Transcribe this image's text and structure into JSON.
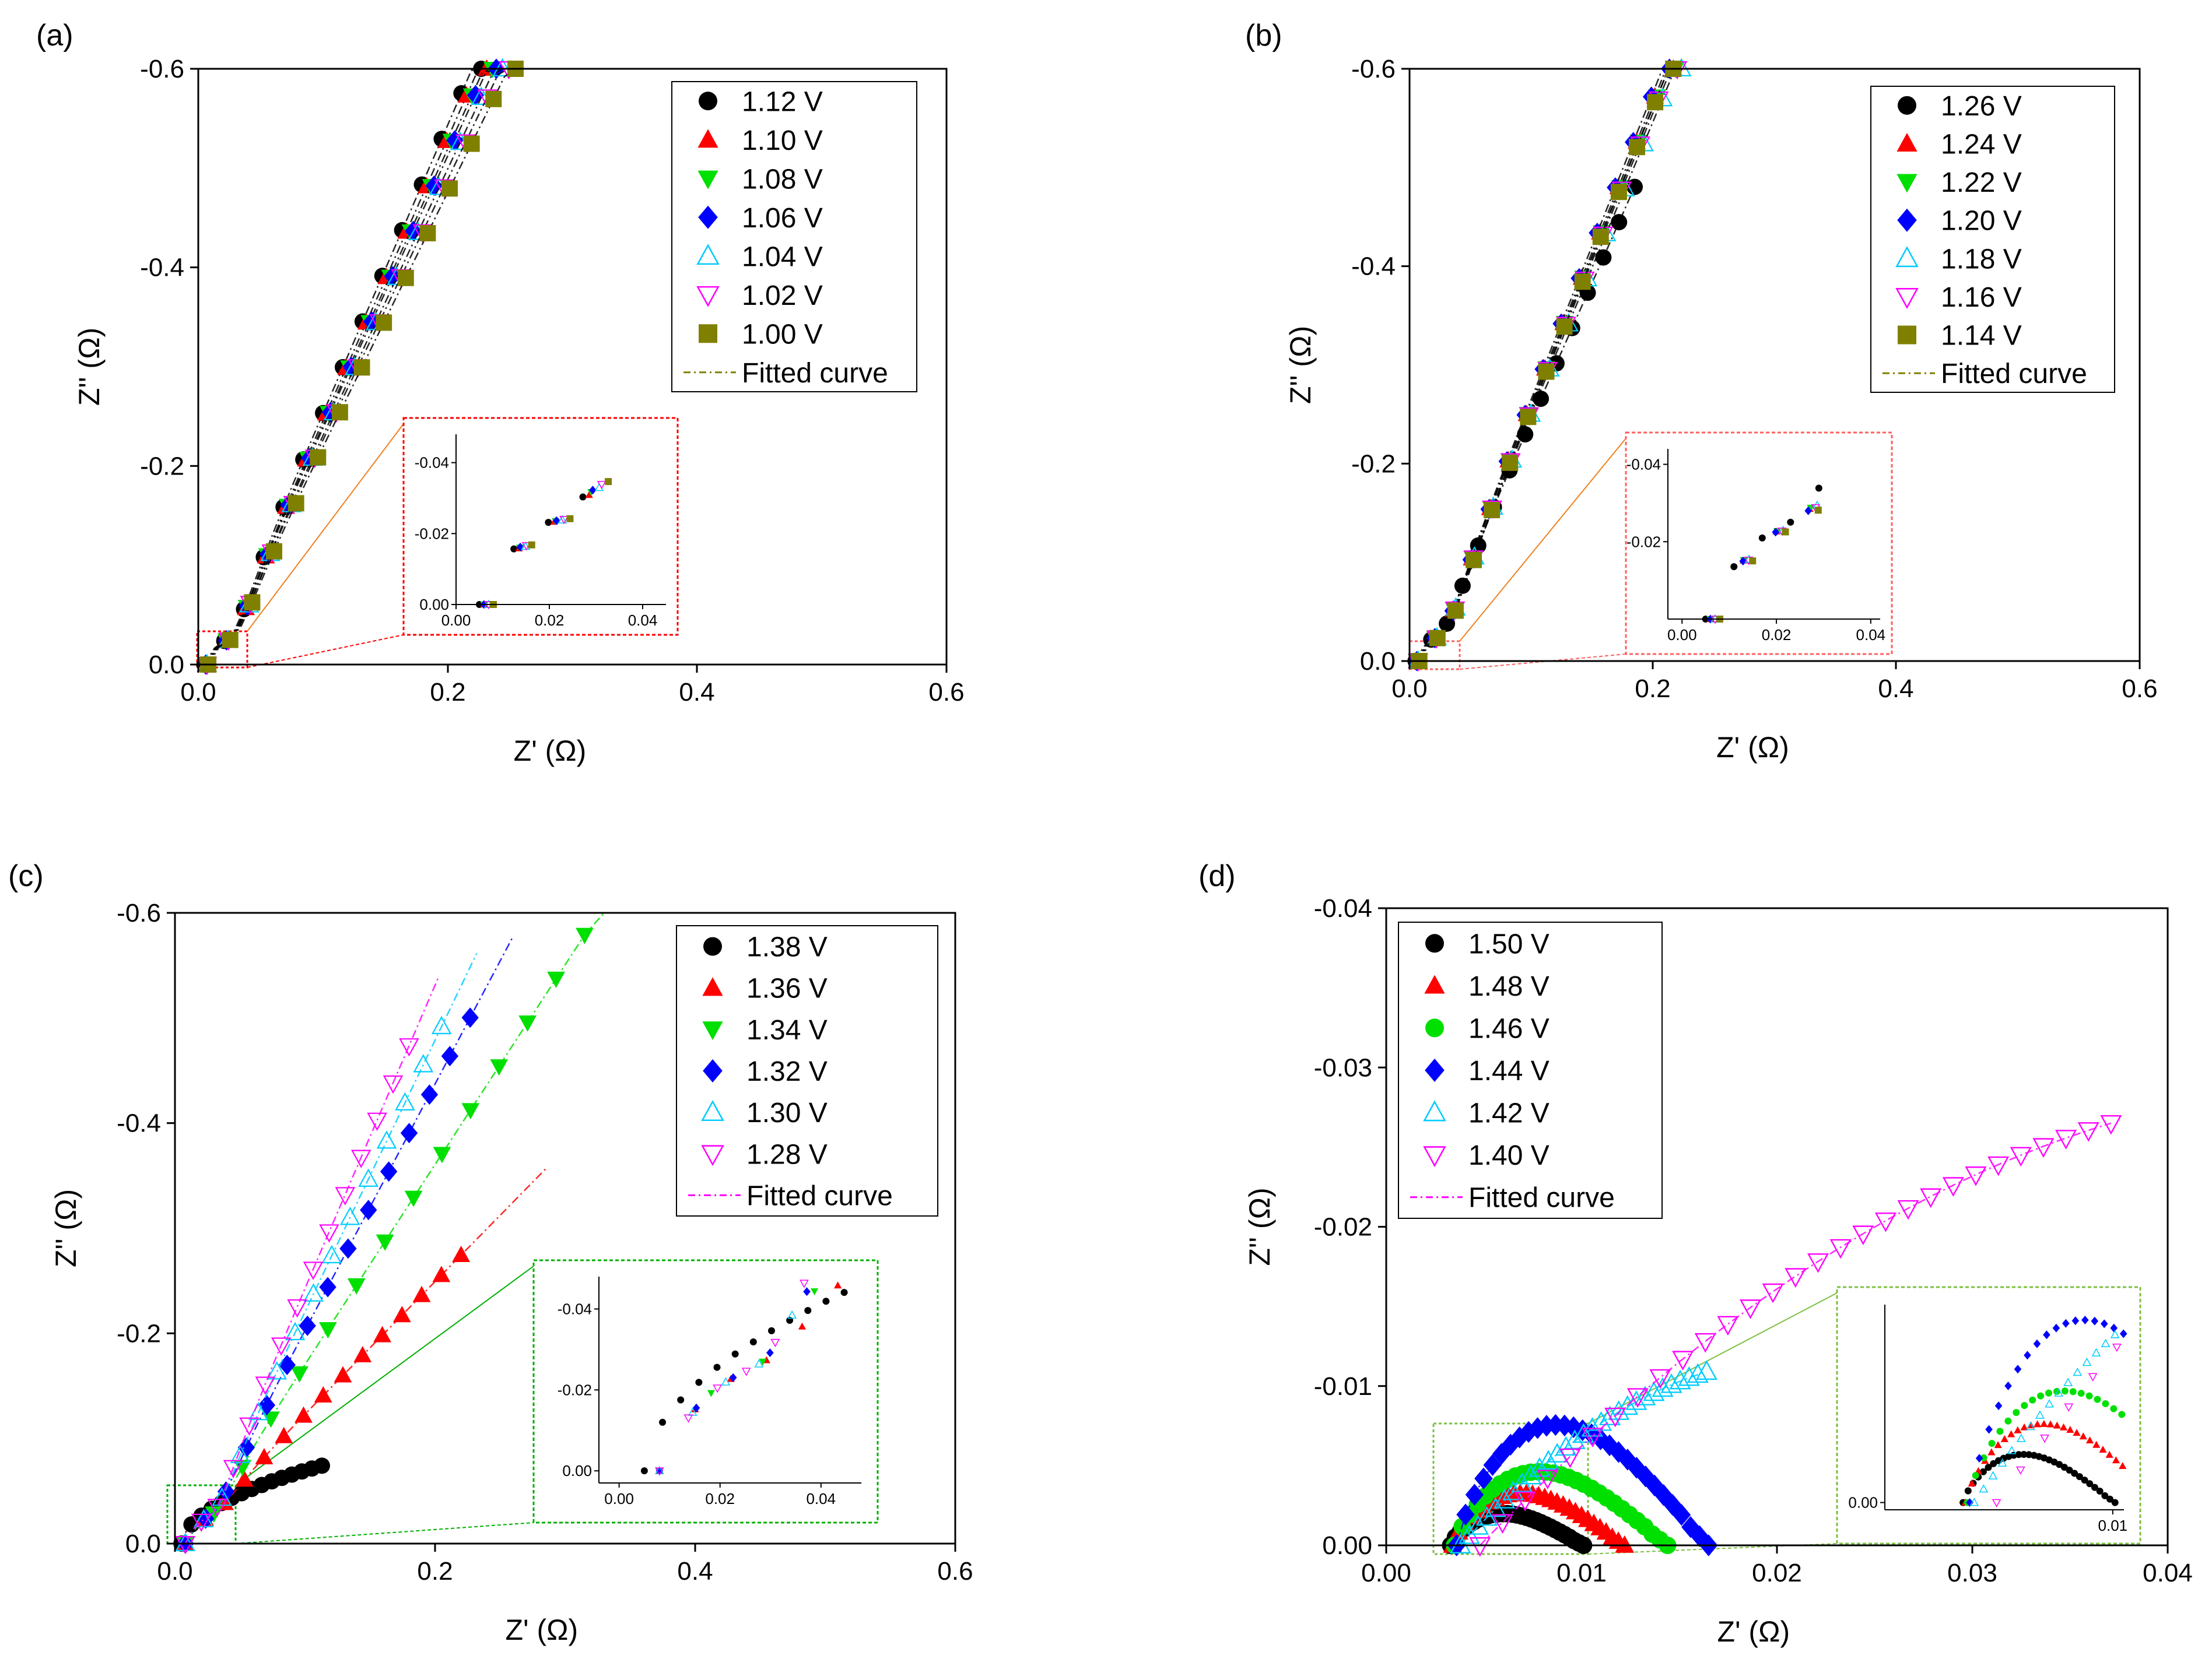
{
  "figure": {
    "panels": [
      "(a)",
      "(b)",
      "(c)",
      "(d)"
    ]
  },
  "chart_data": [
    {
      "panel": "(a)",
      "type": "scatter",
      "title": "",
      "xlabel": "Z' (Ω)",
      "ylabel": "Z'' (Ω)",
      "xlim": [
        0,
        0.6
      ],
      "ylim": [
        0,
        -0.6
      ],
      "xticks": [
        "0.0",
        "0.2",
        "0.4",
        "0.6"
      ],
      "yticks": [
        "0.0",
        "-0.2",
        "-0.4",
        "-0.6"
      ],
      "legend_position": "top-right",
      "fit_label": "Fitted curve",
      "fit_color": "#808000",
      "series": [
        {
          "name": "1.12 V",
          "color": "#000000",
          "marker": "circle",
          "x0": 0.005,
          "slope": 2.9
        },
        {
          "name": "1.10 V",
          "color": "#ff0000",
          "marker": "triangle-up",
          "x0": 0.006,
          "slope": 2.84
        },
        {
          "name": "1.08 V",
          "color": "#00e000",
          "marker": "triangle-down",
          "x0": 0.006,
          "slope": 2.78
        },
        {
          "name": "1.06 V",
          "color": "#0000ff",
          "marker": "diamond",
          "x0": 0.006,
          "slope": 2.74
        },
        {
          "name": "1.04 V",
          "color": "#00ccff",
          "marker": "triangle-up-open",
          "x0": 0.007,
          "slope": 2.68
        },
        {
          "name": "1.02 V",
          "color": "#ff00ff",
          "marker": "triangle-down-open",
          "x0": 0.007,
          "slope": 2.62
        },
        {
          "name": "1.00 V",
          "color": "#808000",
          "marker": "square",
          "x0": 0.008,
          "slope": 2.56
        }
      ],
      "inset": {
        "xlim": [
          0,
          0.045
        ],
        "ylim": [
          0,
          -0.048
        ],
        "xticks": [
          "0.00",
          "0.02",
          "0.04"
        ],
        "yticks": [
          "0.00",
          "-0.02",
          "-0.04"
        ],
        "frame_color": "#ff0000"
      }
    },
    {
      "panel": "(b)",
      "type": "scatter",
      "title": "",
      "xlabel": "Z' (Ω)",
      "ylabel": "Z'' (Ω)",
      "xlim": [
        0,
        0.6
      ],
      "ylim": [
        0,
        -0.6
      ],
      "xticks": [
        "0.0",
        "0.2",
        "0.4",
        "0.6"
      ],
      "yticks": [
        "0.0",
        "-0.2",
        "-0.4",
        "-0.6"
      ],
      "legend_position": "top-right",
      "fit_label": "Fitted curve",
      "fit_color": "#808000",
      "series": [
        {
          "name": "1.26 V",
          "color": "#000000",
          "marker": "circle",
          "x0": 0.005,
          "slope": 2.78,
          "x_end": 0.185
        },
        {
          "name": "1.24 V",
          "color": "#ff0000",
          "marker": "triangle-up",
          "x0": 0.006,
          "slope": 3.05
        },
        {
          "name": "1.22 V",
          "color": "#00e000",
          "marker": "triangle-down",
          "x0": 0.006,
          "slope": 3.02
        },
        {
          "name": "1.20 V",
          "color": "#0000ff",
          "marker": "diamond",
          "x0": 0.006,
          "slope": 3.1
        },
        {
          "name": "1.18 V",
          "color": "#00ccff",
          "marker": "triangle-up-open",
          "x0": 0.007,
          "slope": 2.95
        },
        {
          "name": "1.16 V",
          "color": "#ff00ff",
          "marker": "triangle-down-open",
          "x0": 0.007,
          "slope": 3.0
        },
        {
          "name": "1.14 V",
          "color": "#808000",
          "marker": "square",
          "x0": 0.008,
          "slope": 3.05
        }
      ],
      "inset": {
        "xlim": [
          -0.003,
          0.042
        ],
        "ylim": [
          0,
          -0.044
        ],
        "xticks": [
          "0.00",
          "0.02",
          "0.04"
        ],
        "yticks": [
          "-0.02",
          "-0.04"
        ],
        "frame_color": "#ff6060"
      }
    },
    {
      "panel": "(c)",
      "type": "scatter",
      "title": "",
      "xlabel": "Z' (Ω)",
      "ylabel": "Z'' (Ω)",
      "xlim": [
        0,
        0.6
      ],
      "ylim": [
        0,
        -0.6
      ],
      "xticks": [
        "0.0",
        "0.2",
        "0.4",
        "0.6"
      ],
      "yticks": [
        "0.0",
        "-0.2",
        "-0.4",
        "-0.6"
      ],
      "legend_position": "top-right",
      "fit_label": "Fitted curve",
      "fit_color": "#ff00ff",
      "series": [
        {
          "name": "1.38 V",
          "color": "#000000",
          "marker": "circle",
          "arc": true,
          "x_end": 0.113,
          "y_end": -0.078
        },
        {
          "name": "1.36 V",
          "color": "#ff0000",
          "marker": "triangle-up",
          "x0": 0.008,
          "slope": 1.26,
          "x_end": 0.22,
          "fit_x_end": 0.285
        },
        {
          "name": "1.34 V",
          "color": "#00e000",
          "marker": "triangle-down",
          "x0": 0.008,
          "slope": 1.9,
          "x_end": 0.315,
          "fit_x_end": 0.33
        },
        {
          "name": "1.32 V",
          "color": "#0000ff",
          "marker": "diamond",
          "x0": 0.008,
          "slope": 2.34,
          "x_end": 0.227,
          "fit_x_end": 0.26
        },
        {
          "name": "1.30 V",
          "color": "#00ccff",
          "marker": "triangle-up-open",
          "x0": 0.008,
          "slope": 2.58,
          "x_end": 0.205,
          "fit_x_end": 0.232
        },
        {
          "name": "1.28 V",
          "color": "#ff00ff",
          "marker": "triangle-down-open",
          "x0": 0.008,
          "slope": 2.88,
          "x_end": 0.18,
          "fit_x_end": 0.203
        }
      ],
      "inset": {
        "xlim": [
          -0.004,
          0.048
        ],
        "ylim": [
          0.003,
          -0.048
        ],
        "xticks": [
          "0.00",
          "0.02",
          "0.04"
        ],
        "yticks": [
          "0.00",
          "-0.02",
          "-0.04"
        ],
        "frame_color": "#00b000"
      }
    },
    {
      "panel": "(d)",
      "type": "scatter",
      "title": "",
      "xlabel": "Z' (Ω)",
      "ylabel": "Z'' (Ω)",
      "xlim": [
        0,
        0.04
      ],
      "ylim": [
        0,
        -0.04
      ],
      "xticks": [
        "0.00",
        "0.01",
        "0.02",
        "0.03",
        "0.04"
      ],
      "yticks": [
        "0.00",
        "-0.01",
        "-0.02",
        "-0.03",
        "-0.04"
      ],
      "legend_position": "top-left",
      "fit_label": "Fitted curve",
      "fit_color": "#ff00ff",
      "series": [
        {
          "name": "1.50 V",
          "color": "#000000",
          "marker": "circle",
          "x_start": 0.0033,
          "x_end": 0.0101,
          "y_peak": -0.0019
        },
        {
          "name": "1.48 V",
          "color": "#ff0000",
          "marker": "triangle-up",
          "x_start": 0.0034,
          "x_end": 0.0122,
          "y_peak": -0.0031
        },
        {
          "name": "1.46 V",
          "color": "#00e000",
          "marker": "circle",
          "x_start": 0.0035,
          "x_end": 0.0144,
          "y_peak": -0.0044
        },
        {
          "name": "1.44 V",
          "color": "#0000ff",
          "marker": "diamond",
          "x_start": 0.0036,
          "x_end": 0.0165,
          "y_peak": -0.0072
        },
        {
          "name": "1.42 V",
          "color": "#00ccff",
          "marker": "triangle-up-open",
          "x_start": 0.0038,
          "x_end": 0.0164,
          "y_end": -0.0109
        },
        {
          "name": "1.40 V",
          "color": "#ff00ff",
          "marker": "triangle-down-open",
          "x_start": 0.0048,
          "x_end": 0.0371,
          "y_end": -0.0265
        }
      ],
      "inset": {
        "xlim": [
          -0.0002,
          0.0105
        ],
        "ylim": [
          0.0003,
          -0.0082
        ],
        "xticks": [
          "0.01"
        ],
        "yticks": [
          "0.00"
        ],
        "frame_color": "#7cc040"
      }
    }
  ]
}
